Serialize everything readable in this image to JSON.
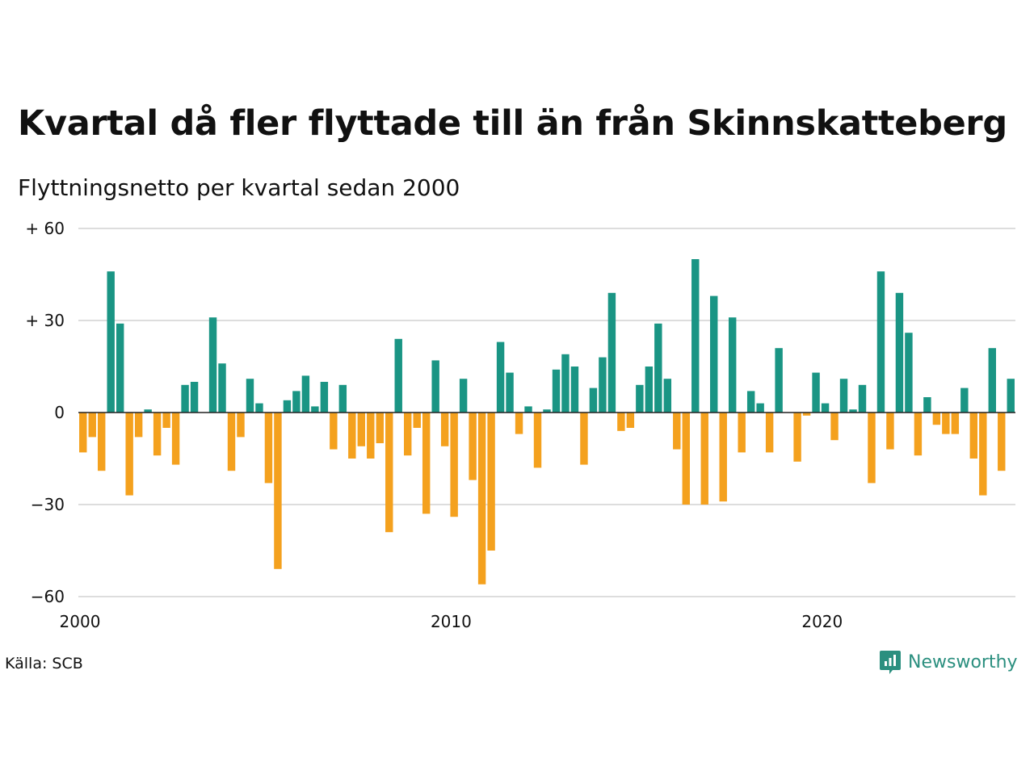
{
  "title": "Kvartal då fler flyttade till än från Skinnskatteberg",
  "subtitle": "Flyttningsnetto per kvartal sedan 2000",
  "source": "Källa: SCB",
  "brand": {
    "name": "Newsworthy",
    "icon": "newsworthy-logo-icon",
    "color": "#2b8f7f"
  },
  "colors": {
    "positive": "#1a9584",
    "negative": "#f4a11e",
    "grid": "#dddddd",
    "zero_line": "#222222"
  },
  "chart_data": {
    "type": "bar",
    "x_start": "2000 Q1",
    "frequency": "quarterly",
    "values": [
      -13,
      -8,
      -19,
      46,
      29,
      -27,
      -8,
      1,
      -14,
      -5,
      -17,
      9,
      10,
      0,
      31,
      16,
      -19,
      -8,
      11,
      3,
      -23,
      -51,
      4,
      7,
      12,
      2,
      10,
      -12,
      9,
      -15,
      -11,
      -15,
      -10,
      -39,
      24,
      -14,
      -5,
      -33,
      17,
      -11,
      -34,
      11,
      -22,
      -56,
      -45,
      23,
      13,
      -7,
      2,
      -18,
      1,
      14,
      19,
      15,
      -17,
      8,
      18,
      39,
      -6,
      -5,
      9,
      15,
      29,
      11,
      -12,
      -30,
      50,
      -30,
      38,
      -29,
      31,
      -13,
      7,
      3,
      -13,
      21,
      0,
      -16,
      -1,
      13,
      3,
      -9,
      11,
      1,
      9,
      -23,
      46,
      -12,
      39,
      26,
      -14,
      5,
      -4,
      -7,
      -7,
      8,
      -15,
      -27,
      21,
      -19,
      11
    ],
    "ylim": [
      -60,
      60
    ],
    "y_ticks": [
      60,
      30,
      0,
      -30,
      -60
    ],
    "y_tick_labels": [
      "+ 60",
      "+ 30",
      "0",
      "−30",
      "−60"
    ],
    "x_ticks": [
      2000,
      2010,
      2020
    ],
    "x_tick_labels": [
      "2000",
      "2010",
      "2020"
    ],
    "grid": true
  }
}
